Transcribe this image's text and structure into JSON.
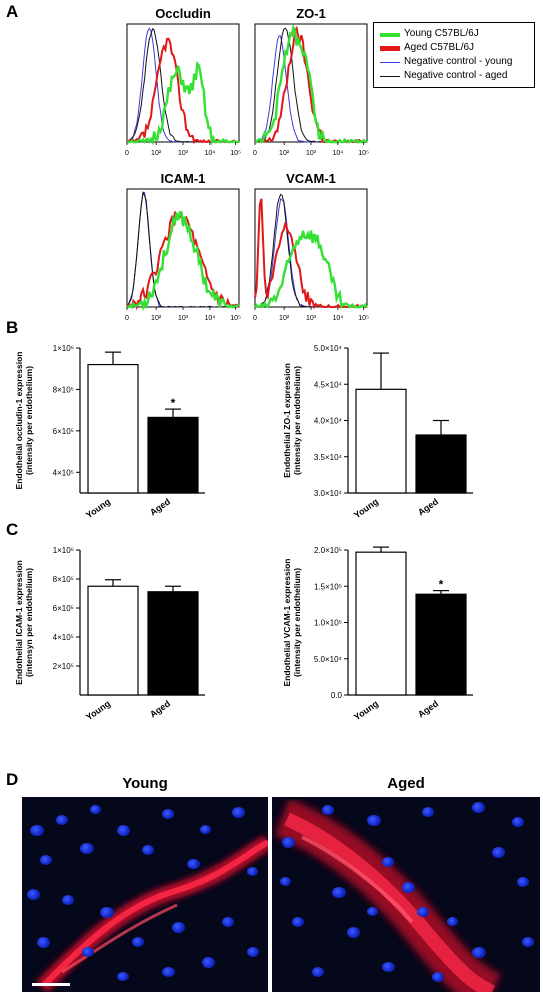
{
  "panels": {
    "a": "A",
    "b": "B",
    "c": "C",
    "d": "D"
  },
  "colors": {
    "young": "#33e033",
    "aged": "#e01818",
    "neg_young": "#3b3bd6",
    "neg_aged": "#111111"
  },
  "legend": {
    "young": "Young C57BL/6J",
    "aged": "Aged C57BL/6J",
    "neg_young": "Negative control - young",
    "neg_aged": "Negative control - aged"
  },
  "flow_x_ticks": [
    "0",
    "10^2",
    "10^3",
    "10^4",
    "10^5"
  ],
  "chart_data": [
    {
      "type": "line",
      "title": "Occludin",
      "x_scale": "log",
      "xlim": [
        "0",
        "10^5"
      ],
      "series": [
        {
          "name": "Young C57BL/6J"
        },
        {
          "name": "Aged C57BL/6J"
        },
        {
          "name": "Negative control - young"
        },
        {
          "name": "Negative control - aged"
        }
      ]
    },
    {
      "type": "line",
      "title": "ZO-1",
      "x_scale": "log",
      "xlim": [
        "0",
        "10^5"
      ],
      "series": [
        {
          "name": "Young C57BL/6J"
        },
        {
          "name": "Aged C57BL/6J"
        },
        {
          "name": "Negative control - young"
        },
        {
          "name": "Negative control - aged"
        }
      ]
    },
    {
      "type": "line",
      "title": "ICAM-1",
      "x_scale": "log",
      "xlim": [
        "0",
        "10^5"
      ],
      "series": [
        {
          "name": "Young C57BL/6J"
        },
        {
          "name": "Aged C57BL/6J"
        },
        {
          "name": "Negative control - young"
        },
        {
          "name": "Negative control - aged"
        }
      ]
    },
    {
      "type": "line",
      "title": "VCAM-1",
      "x_scale": "log",
      "xlim": [
        "0",
        "10^5"
      ],
      "series": [
        {
          "name": "Young C57BL/6J"
        },
        {
          "name": "Aged C57BL/6J"
        },
        {
          "name": "Negative control - young"
        },
        {
          "name": "Negative control - aged"
        }
      ]
    },
    {
      "type": "bar",
      "categories": [
        "Young",
        "Aged"
      ],
      "values": [
        920000,
        665000
      ],
      "errors": [
        60000,
        40000
      ],
      "ylabel": "Endothelial occludin-1 expression (intensity per endothelium)",
      "ylim": [
        300000,
        1000000
      ],
      "ticks": [
        400000,
        600000,
        800000,
        1000000
      ],
      "tick_labels": [
        "4×10⁵",
        "6×10⁵",
        "8×10⁵",
        "1×10⁶"
      ],
      "significance": [
        "",
        "*"
      ]
    },
    {
      "type": "bar",
      "categories": [
        "Young",
        "Aged"
      ],
      "values": [
        44300,
        38000
      ],
      "errors": [
        5000,
        2000
      ],
      "ylabel": "Endothelial ZO-1 expression (intensity per endothelium)",
      "ylim": [
        30000,
        50000
      ],
      "ticks": [
        30000,
        35000,
        40000,
        45000,
        50000
      ],
      "tick_labels": [
        "3.0×10⁴",
        "3.5×10⁴",
        "4.0×10⁴",
        "4.5×10⁴",
        "5.0×10⁴"
      ],
      "significance": [
        "",
        ""
      ]
    },
    {
      "type": "bar",
      "categories": [
        "Young",
        "Aged"
      ],
      "values": [
        750000,
        712000
      ],
      "errors": [
        45000,
        38000
      ],
      "ylabel": "Endothelial ICAM-1 expression (intensity per endothelium)",
      "ylim": [
        0,
        1000000
      ],
      "ticks": [
        200000,
        400000,
        600000,
        800000,
        1000000
      ],
      "tick_labels": [
        "2×10⁵",
        "4×10⁵",
        "6×10⁵",
        "8×10⁵",
        "1×10⁶"
      ],
      "significance": [
        "",
        ""
      ]
    },
    {
      "type": "bar",
      "categories": [
        "Young",
        "Aged"
      ],
      "values": [
        197000,
        139000
      ],
      "errors": [
        7000,
        5000
      ],
      "ylabel": "Endothelial VCAM-1 expression (intensity per endothelium)",
      "ylim": [
        0,
        200000
      ],
      "ticks": [
        0,
        50000,
        100000,
        150000,
        200000
      ],
      "tick_labels": [
        "0.0",
        "5.0×10⁴",
        "1.0×10⁵",
        "1.5×10⁵",
        "2.0×10⁵"
      ],
      "significance": [
        "",
        "*"
      ]
    }
  ],
  "bar_ylabels": {
    "occludin": [
      "Endothelial occludin-1 expression",
      "(intensity per endothelium)"
    ],
    "zo1": [
      "Endothelial ZO-1 expression",
      "(intensity per endothelium)"
    ],
    "icam": [
      "Endothelial ICAM-1 expression",
      "(intensyn per endothelium)"
    ],
    "vcam": [
      "Endothelial VCAM-1 expression",
      "(intensity per endothelium)"
    ]
  },
  "micrographs": {
    "young_title": "Young",
    "aged_title": "Aged"
  }
}
